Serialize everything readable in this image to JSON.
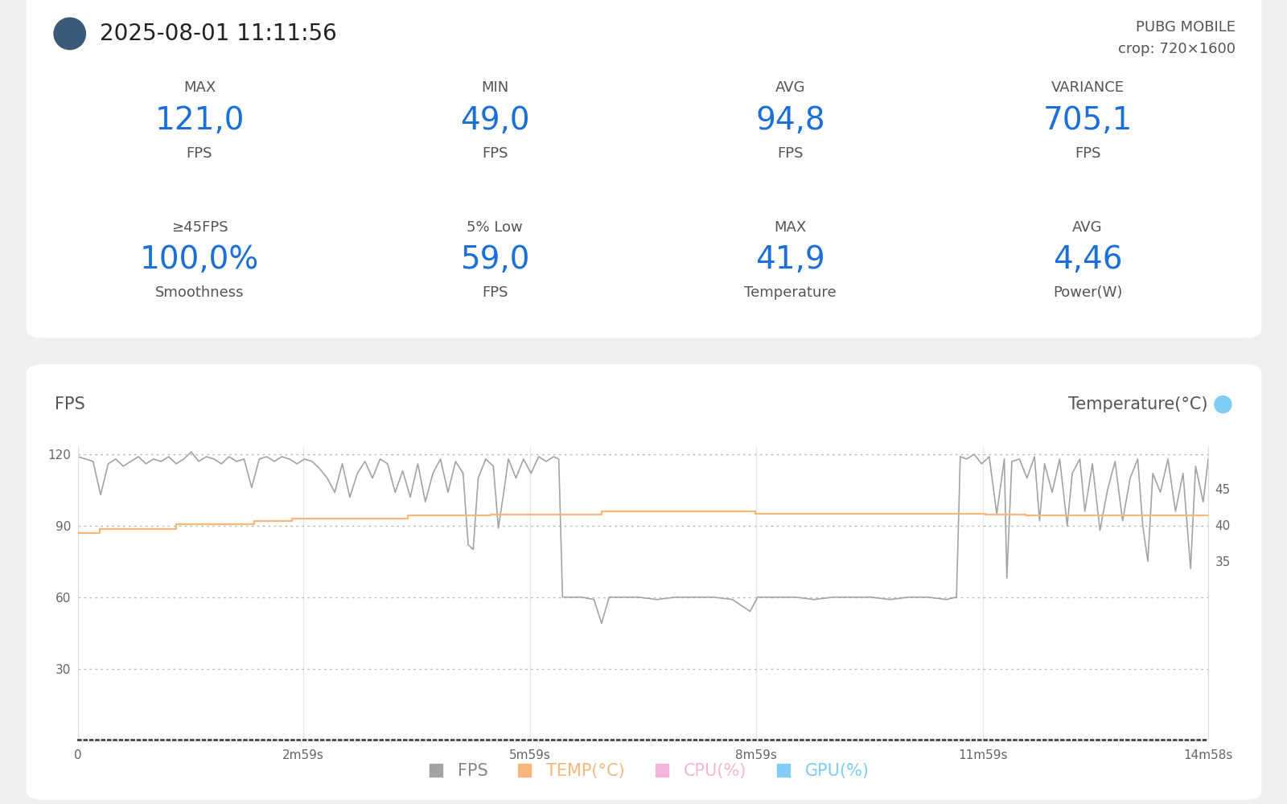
{
  "header": {
    "date": "2025-08-01 11:11:56",
    "app": "PUBG MOBILE",
    "crop": "crop: 720×1600"
  },
  "stats": [
    {
      "label": "MAX",
      "value": "121,0",
      "unit": "FPS"
    },
    {
      "label": "MIN",
      "value": "49,0",
      "unit": "FPS"
    },
    {
      "label": "AVG",
      "value": "94,8",
      "unit": "FPS"
    },
    {
      "label": "VARIANCE",
      "value": "705,1",
      "unit": "FPS"
    },
    {
      "label": "≥45FPS",
      "value": "100,0%",
      "unit": "Smoothness"
    },
    {
      "label": "5% Low",
      "value": "59,0",
      "unit": "FPS"
    },
    {
      "label": "MAX",
      "value": "41,9",
      "unit": "Temperature"
    },
    {
      "label": "AVG",
      "value": "4,46",
      "unit": "Power(W)"
    }
  ],
  "chart_data": {
    "type": "line",
    "y_label": "FPS",
    "y2_label": "Temperature(°C)",
    "xlim": [
      0,
      898
    ],
    "xticks": [
      0,
      {
        "value": 179,
        "label": "2m59s"
      },
      {
        "value": 359,
        "label": "5m59s"
      },
      {
        "value": 539,
        "label": "8m59s"
      },
      {
        "value": 719,
        "label": "11m59s"
      },
      {
        "value": 898,
        "label": "14m58s"
      }
    ],
    "ylim": [
      0,
      123
    ],
    "yticks": [
      30,
      60,
      90,
      120
    ],
    "y2lim": [
      10.2,
      50.8
    ],
    "y2ticks": [
      35,
      40,
      45
    ],
    "grid": true,
    "legend": "bottom",
    "series": [
      {
        "name": "FPS",
        "color": "#a3a3a3",
        "line_style": "solid",
        "x": [
          0,
          6,
          12,
          18,
          24,
          30,
          36,
          42,
          48,
          54,
          60,
          66,
          72,
          78,
          84,
          90,
          96,
          102,
          108,
          114,
          120,
          126,
          132,
          138,
          144,
          150,
          156,
          162,
          168,
          174,
          180,
          186,
          192,
          198,
          204,
          210,
          216,
          222,
          228,
          234,
          240,
          246,
          252,
          258,
          264,
          270,
          276,
          282,
          288,
          294,
          300,
          306,
          310,
          314,
          318,
          324,
          330,
          334,
          338,
          342,
          348,
          354,
          360,
          366,
          372,
          378,
          382,
          385,
          390,
          400,
          410,
          416,
          422,
          430,
          445,
          460,
          475,
          490,
          505,
          520,
          534,
          540,
          555,
          570,
          585,
          600,
          615,
          630,
          645,
          660,
          675,
          690,
          698,
          701,
          706,
          712,
          718,
          724,
          730,
          736,
          738,
          742,
          748,
          754,
          760,
          764,
          768,
          774,
          780,
          786,
          790,
          796,
          800,
          806,
          812,
          818,
          824,
          830,
          836,
          842,
          846,
          850,
          854,
          860,
          866,
          872,
          878,
          884,
          888,
          894,
          898
        ],
        "values": [
          119,
          118,
          117,
          103,
          116,
          118,
          115,
          117,
          119,
          116,
          118,
          117,
          119,
          116,
          118,
          121,
          117,
          119,
          118,
          116,
          119,
          117,
          118,
          106,
          118,
          119,
          117,
          119,
          118,
          116,
          118,
          117,
          114,
          110,
          104,
          116,
          102,
          112,
          117,
          110,
          118,
          116,
          104,
          113,
          102,
          116,
          100,
          112,
          118,
          104,
          117,
          112,
          82,
          80,
          110,
          118,
          115,
          89,
          103,
          118,
          110,
          118,
          112,
          119,
          117,
          119,
          118,
          60,
          60,
          60,
          59,
          49,
          60,
          60,
          60,
          59,
          60,
          60,
          60,
          59,
          54,
          60,
          60,
          60,
          59,
          60,
          60,
          60,
          59,
          60,
          60,
          59,
          60,
          119,
          118,
          120,
          116,
          119,
          95,
          118,
          68,
          117,
          118,
          110,
          119,
          92,
          116,
          104,
          118,
          90,
          112,
          118,
          96,
          116,
          88,
          105,
          117,
          92,
          110,
          118,
          90,
          75,
          112,
          104,
          118,
          96,
          112,
          72,
          115,
          100,
          118
        ]
      },
      {
        "name": "TEMP(°C)",
        "color": "#f7b77a",
        "axis": "y2",
        "line_style": "steps",
        "x": [
          0,
          17,
          78,
          140,
          170,
          262,
          328,
          416,
          538,
          721,
          753,
          898
        ],
        "values": [
          38.9,
          39.4,
          40.1,
          40.6,
          40.9,
          41.3,
          41.4,
          41.9,
          41.6,
          41.4,
          41.3,
          41.3
        ]
      },
      {
        "name": "CPU(%)",
        "color": "#f5b5d8",
        "x": [],
        "values": []
      },
      {
        "name": "GPU(%)",
        "color": "#7fcdf5",
        "x": [],
        "values": []
      }
    ]
  }
}
